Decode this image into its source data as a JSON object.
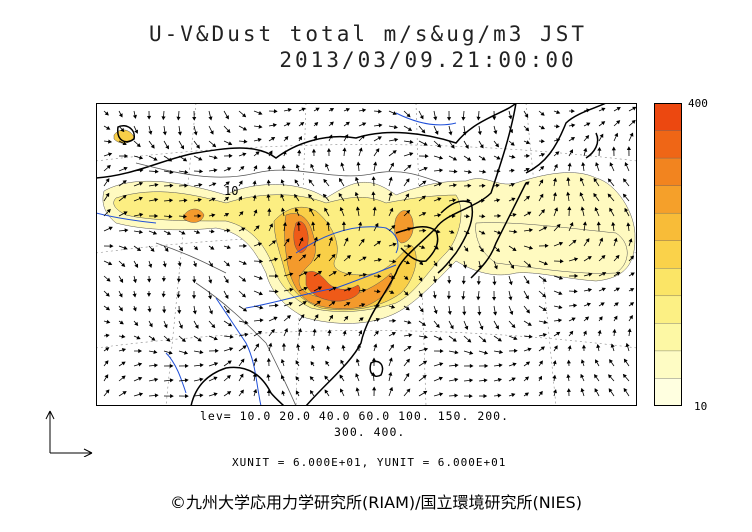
{
  "title_line1": "U-V&Dust total m/s&ug/m3 JST",
  "title_line2": "2013/03/09.21:00:00",
  "contour_label": "10",
  "legend": {
    "max_label": "400",
    "min_label": "10",
    "colors": [
      "#ffffe0",
      "#fefcc4",
      "#fdf8a4",
      "#fcf084",
      "#fbe566",
      "#fad24a",
      "#f8bc38",
      "#f5a02a",
      "#f2841f",
      "#ef6616",
      "#ec4810"
    ]
  },
  "levels_line1": "lev= 10.0 20.0 40.0 60.0 100. 150. 200.",
  "levels_line2": "300. 400.",
  "units_line": "XUNIT = 6.000E+01, YUNIT = 6.000E+01",
  "copyright": "©九州大学応用力学研究所(RIAM)/国立環境研究所(NIES)"
}
